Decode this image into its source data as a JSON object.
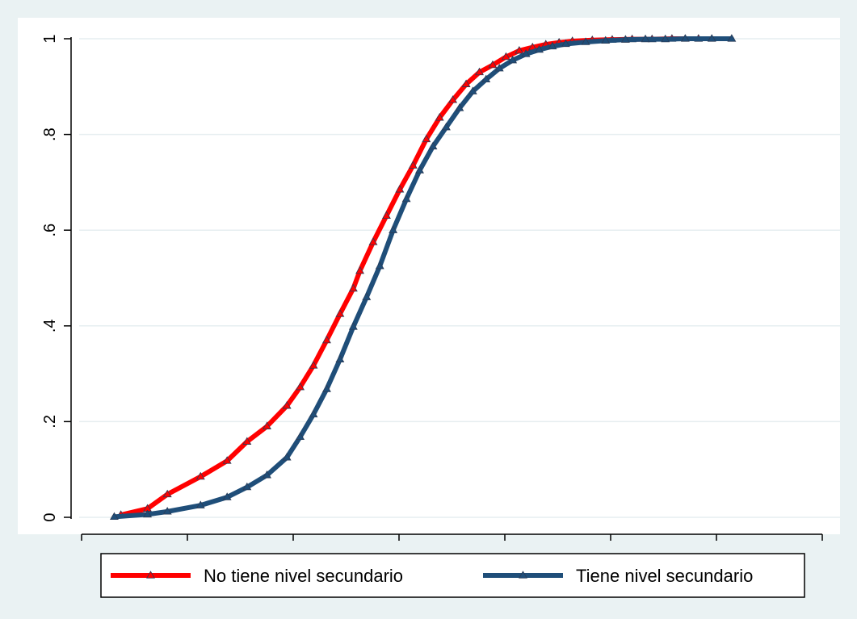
{
  "chart_data": {
    "type": "line",
    "title": "",
    "xlabel": "",
    "ylabel": "",
    "grid": true,
    "legend_position": "bottom",
    "x_unlabeled_ticks": 8,
    "ylim": [
      0,
      1
    ],
    "yticks": [
      {
        "value": 0,
        "label": "0"
      },
      {
        "value": 0.2,
        "label": ".2"
      },
      {
        "value": 0.4,
        "label": ".4"
      },
      {
        "value": 0.6,
        "label": ".6"
      },
      {
        "value": 0.8,
        "label": ".8"
      },
      {
        "value": 1,
        "label": "1"
      }
    ],
    "series": [
      {
        "name": "No tiene nivel secundario",
        "color": "#ff0000",
        "marker": "triangle",
        "x": [
          0.3,
          0.7,
          1.0,
          1.5,
          1.9,
          2.2,
          2.5,
          2.8,
          3.0,
          3.2,
          3.4,
          3.6,
          3.8,
          3.9,
          4.1,
          4.3,
          4.5,
          4.7,
          4.9,
          5.1,
          5.3,
          5.5,
          5.7,
          5.9,
          6.1,
          6.3,
          6.5,
          6.7,
          6.9,
          7.1,
          7.4,
          7.7,
          8.0,
          8.3,
          8.6,
          9.0
        ],
        "values": [
          0.005,
          0.018,
          0.048,
          0.085,
          0.118,
          0.158,
          0.19,
          0.233,
          0.272,
          0.317,
          0.37,
          0.425,
          0.478,
          0.515,
          0.575,
          0.63,
          0.685,
          0.735,
          0.79,
          0.835,
          0.872,
          0.905,
          0.93,
          0.945,
          0.962,
          0.975,
          0.982,
          0.988,
          0.992,
          0.995,
          0.997,
          0.998,
          0.999,
          0.999,
          1.0,
          1.0
        ]
      },
      {
        "name": "Tiene nivel secundario",
        "color": "#1f4e79",
        "marker": "triangle",
        "x": [
          0.2,
          0.7,
          1.0,
          1.5,
          1.9,
          2.2,
          2.5,
          2.8,
          3.0,
          3.2,
          3.4,
          3.6,
          3.8,
          4.0,
          4.2,
          4.4,
          4.6,
          4.8,
          5.0,
          5.2,
          5.4,
          5.6,
          5.8,
          6.0,
          6.2,
          6.4,
          6.6,
          6.8,
          7.0,
          7.3,
          7.6,
          7.9,
          8.2,
          8.5,
          8.8,
          9.2,
          9.5
        ],
        "values": [
          0.001,
          0.006,
          0.012,
          0.025,
          0.042,
          0.063,
          0.088,
          0.125,
          0.168,
          0.215,
          0.268,
          0.33,
          0.398,
          0.46,
          0.525,
          0.6,
          0.665,
          0.725,
          0.775,
          0.815,
          0.855,
          0.89,
          0.915,
          0.938,
          0.955,
          0.968,
          0.977,
          0.984,
          0.989,
          0.993,
          0.996,
          0.998,
          0.999,
          0.999,
          1.0,
          1.0,
          1.0
        ]
      }
    ],
    "xlim": [
      0,
      10
    ]
  }
}
